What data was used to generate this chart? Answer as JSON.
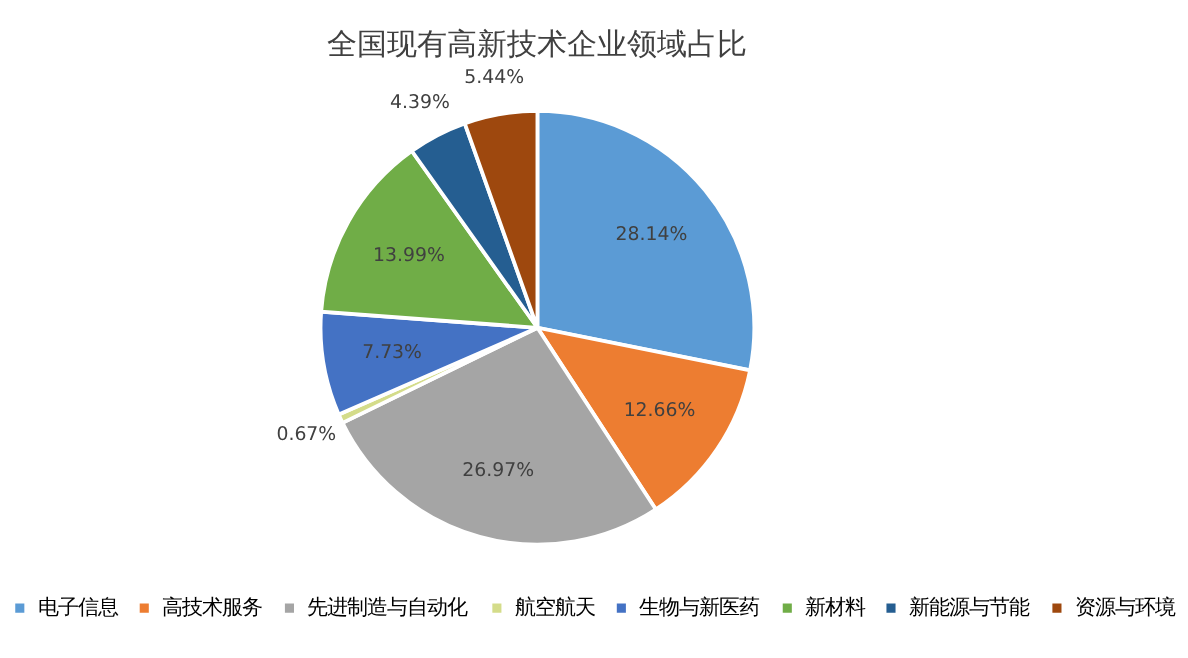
{
  "chart_data": {
    "type": "pie",
    "title": "全国现有高新技术企业领域占比",
    "categories": [
      "电子信息",
      "高技术服务",
      "先进制造与自动化",
      "航空航天",
      "生物与新医药",
      "新材料",
      "新能源与节能",
      "资源与环境"
    ],
    "values": [
      28.14,
      12.66,
      26.97,
      0.67,
      7.73,
      13.99,
      4.39,
      5.44
    ],
    "colors": [
      "#5b9bd5",
      "#ed7d31",
      "#a5a5a5",
      "#d4dc8a",
      "#4472c4",
      "#70ad47",
      "#255e91",
      "#9e480e"
    ],
    "value_labels": [
      "28.14%",
      "12.66%",
      "26.97%",
      "0.67%",
      "7.73%",
      "13.99%",
      "4.39%",
      "5.44%"
    ],
    "legend": "bottom"
  }
}
